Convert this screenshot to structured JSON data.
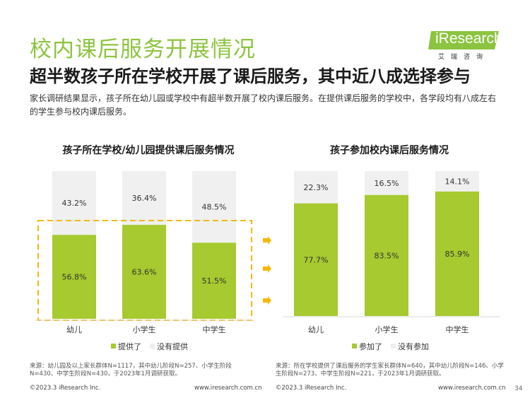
{
  "header": {
    "title": "校内课后服务开展情况",
    "subtitle": "超半数孩子所在学校开展了课后服务，其中近八成选择参与",
    "description": "家长调研结果显示，孩子所在幼儿园或学校中有超半数开展了校内课后服务。在提供课后服务的学校中，各学段均有八成左右的学生参与校内课后服务。"
  },
  "logo": {
    "text": "iResearch",
    "sub": "艾瑞咨询",
    "color": "#8cc43f"
  },
  "colors": {
    "accent": "#a6ca2f",
    "rest": "#f0f0f0",
    "highlight": "#f5b800",
    "title": "#8cc43f"
  },
  "chart_data": [
    {
      "type": "bar",
      "stacked": true,
      "title": "孩子所在学校/幼儿园提供课后服务情况",
      "categories": [
        "幼儿",
        "小学生",
        "中学生"
      ],
      "series": [
        {
          "name": "提供了",
          "values": [
            56.8,
            63.6,
            51.5
          ],
          "labels": [
            "56.8%",
            "63.6%",
            "51.5%"
          ]
        },
        {
          "name": "没有提供",
          "values": [
            43.2,
            36.4,
            48.5
          ],
          "labels": [
            "43.2%",
            "36.4%",
            "48.5%"
          ]
        }
      ],
      "ylim": [
        0,
        100
      ],
      "legend": "bottom"
    },
    {
      "type": "bar",
      "stacked": true,
      "title": "孩子参加校内课后服务情况",
      "categories": [
        "幼儿",
        "小学生",
        "中学生"
      ],
      "series": [
        {
          "name": "参加了",
          "values": [
            77.7,
            83.5,
            85.9
          ],
          "labels": [
            "77.7%",
            "83.5%",
            "85.9%"
          ]
        },
        {
          "name": "没有参加",
          "values": [
            22.3,
            16.5,
            14.1
          ],
          "labels": [
            "22.3%",
            "16.5%",
            "14.1%"
          ]
        }
      ],
      "ylim": [
        0,
        100
      ],
      "legend": "bottom"
    }
  ],
  "footnotes": {
    "left": "来源：幼儿园及以上家长群体N=1117，其中幼儿阶段N=257、小学生阶段N=430、中学生阶段N=430，于2023年1月调研获取。",
    "right": "来源：所在学校提供了课后服务的学生家长群体N=640，其中幼儿阶段N=146、小学生阶段N=273、中学生阶段N=221，于2023年1月调研获取。"
  },
  "footer": {
    "copyright_left": "©2023.3 iResearch Inc.",
    "url_left": "www.iresearch.com.cn",
    "copyright_right": "©2023.3 iResearch Inc.",
    "url_right": "www.iresearch.com.cn",
    "page": "34"
  }
}
